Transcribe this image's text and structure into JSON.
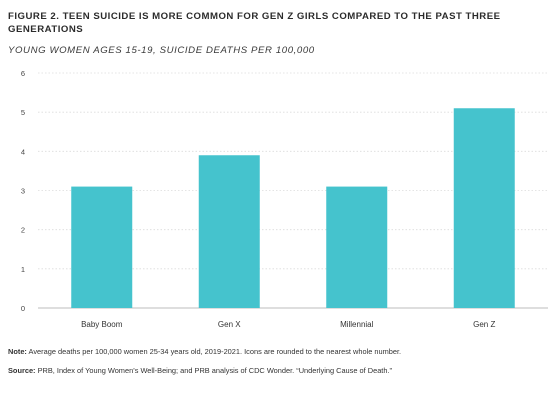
{
  "header": {
    "title": "FIGURE 2. TEEN SUICIDE IS MORE COMMON FOR GEN Z GIRLS COMPARED TO THE PAST THREE GENERATIONS",
    "subtitle": "YOUNG WOMEN AGES 15-19, SUICIDE DEATHS PER 100,000"
  },
  "footer": {
    "note_label": "Note:",
    "note_text": "Average deaths per 100,000 women 25-34 years old, 2019-2021. Icons are rounded to the nearest whole number.",
    "source_label": "Source:",
    "source_text": "PRB, Index of Young Women’s Well-Being; and PRB analysis of CDC Wonder. “Underlying Cause of Death.”"
  },
  "colors": {
    "bar": "#45c3cd",
    "grid": "#dcdcdc",
    "axis": "#bdbdbd"
  },
  "chart_data": {
    "type": "bar",
    "categories": [
      "Baby Boom",
      "Gen X",
      "Millennial",
      "Gen Z"
    ],
    "values": [
      3.1,
      3.9,
      3.1,
      5.1
    ],
    "ylim": [
      0,
      6
    ],
    "yticks": [
      "0",
      "1",
      "2",
      "3",
      "4",
      "5",
      "6"
    ],
    "grid": true,
    "legend": "none"
  }
}
